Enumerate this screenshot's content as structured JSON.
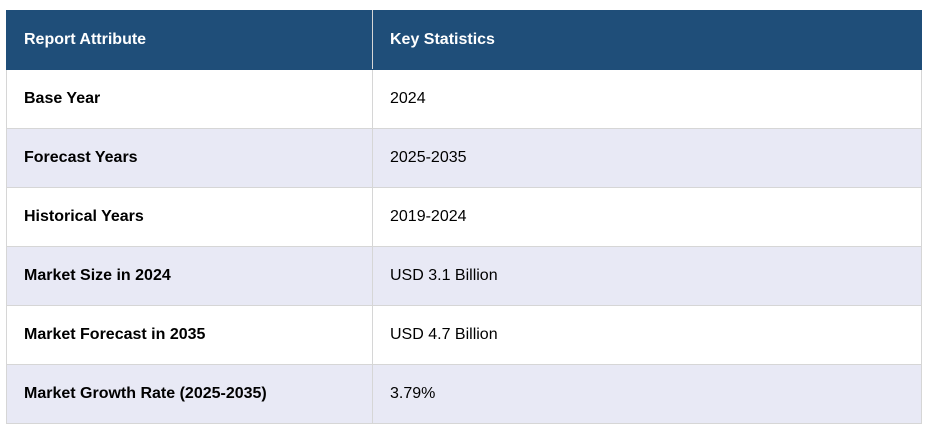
{
  "table": {
    "headers": [
      "Report Attribute",
      "Key Statistics"
    ],
    "rows": [
      [
        "Base Year",
        "2024"
      ],
      [
        "Forecast Years",
        "2025-2035"
      ],
      [
        "Historical Years",
        "2019-2024"
      ],
      [
        "Market Size in 2024",
        "USD 3.1 Billion"
      ],
      [
        "Market Forecast in 2035",
        "USD 4.7 Billion"
      ],
      [
        "Market Growth Rate (2025-2035)",
        "3.79%"
      ]
    ],
    "colors": {
      "header_bg": "#1f4e79",
      "header_text": "#ffffff",
      "row_alt_bg": "#e8e9f5",
      "border": "#d6d6d6"
    }
  }
}
